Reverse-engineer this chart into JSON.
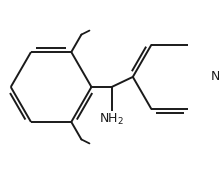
{
  "background_color": "#ffffff",
  "line_color": "#1a1a1a",
  "line_width": 1.4,
  "dbo": 0.018,
  "font_size": 9,
  "fig_width": 2.19,
  "fig_height": 1.74,
  "dpi": 100
}
